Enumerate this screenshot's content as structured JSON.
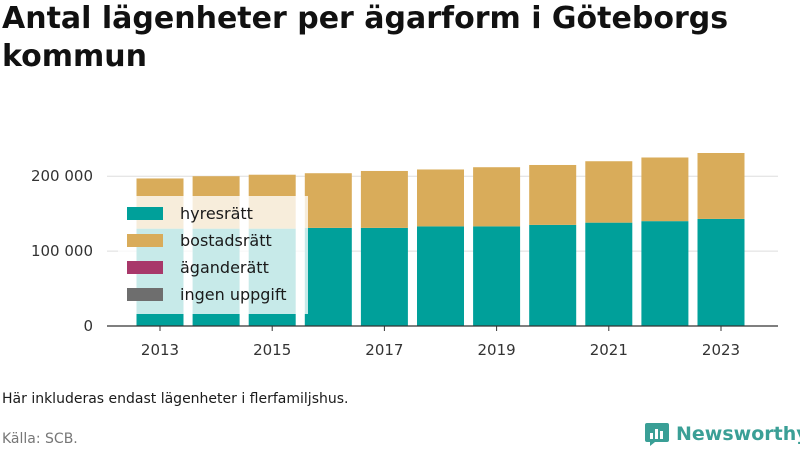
{
  "chart_data": {
    "type": "bar",
    "stacked": true,
    "title": "Antal lägenheter per ägarform i Göteborgs kommun",
    "xlabel": "",
    "ylabel": "",
    "categories": [
      "2013",
      "2014",
      "2015",
      "2016",
      "2017",
      "2018",
      "2019",
      "2020",
      "2021",
      "2022",
      "2023"
    ],
    "x_tick_labels": [
      "2013",
      "2015",
      "2017",
      "2019",
      "2021",
      "2023"
    ],
    "y_ticks": [
      0,
      100000,
      200000
    ],
    "y_tick_labels": [
      "0",
      "100 000",
      "200 000"
    ],
    "ylim": [
      0,
      235000
    ],
    "grid": true,
    "legend_position": "top-left",
    "series": [
      {
        "name": "hyresrätt",
        "color": "#00a09a",
        "values": [
          130000,
          130000,
          130000,
          131000,
          131000,
          133000,
          133000,
          135000,
          138000,
          140000,
          143000
        ]
      },
      {
        "name": "bostadsrätt",
        "color": "#d9ac5a",
        "values": [
          67000,
          70000,
          72000,
          73000,
          76000,
          76000,
          79000,
          80000,
          82000,
          85000,
          88000
        ]
      },
      {
        "name": "äganderätt",
        "color": "#a8386a",
        "values": [
          0,
          0,
          0,
          0,
          0,
          0,
          0,
          0,
          0,
          0,
          0
        ]
      },
      {
        "name": "ingen uppgift",
        "color": "#6e6e6e",
        "values": [
          0,
          0,
          0,
          0,
          0,
          0,
          0,
          0,
          0,
          0,
          0
        ]
      }
    ]
  },
  "footer": {
    "note": "Här inkluderas endast lägenheter i flerfamiljshus.",
    "source": "Källa: SCB.",
    "brand": "Newsworthy"
  },
  "colors": {
    "brand": "#3a9f96",
    "grid": "#dddddd",
    "axis": "#333333"
  }
}
